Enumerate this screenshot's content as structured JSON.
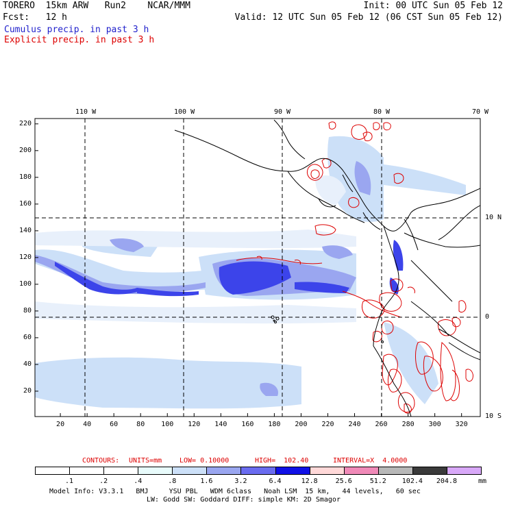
{
  "header": {
    "model": "TORERO  15km ARW   Run2    NCAR/MMM",
    "init": "Init: 00 UTC Sun 05 Feb 12",
    "fcst": "Fcst:   12 h",
    "valid": "Valid: 12 UTC Sun 05 Feb 12 (06 CST Sun 05 Feb 12)",
    "field1": "Cumulus precip. in past 3 h",
    "field2": "Explicit precip. in past 3 h"
  },
  "map": {
    "lon_labels": [
      "110 W",
      "100 W",
      "90 W",
      "80 W",
      "70 W"
    ],
    "lat_labels": [
      "10 N",
      "0",
      "10 S"
    ],
    "y_ticks": [
      "20",
      "40",
      "60",
      "80",
      "100",
      "120",
      "140",
      "160",
      "180",
      "200",
      "220"
    ],
    "x_ticks": [
      "20",
      "40",
      "60",
      "80",
      "100",
      "120",
      "140",
      "160",
      "180",
      "200",
      "220",
      "240",
      "260",
      "280",
      "300",
      "320"
    ]
  },
  "contour_info": {
    "label": "CONTOURS:",
    "units": "UNITS=mm",
    "low": "LOW= 0.10000",
    "high": "HIGH=  102.40",
    "interval": "INTERVAL=X  4.0000"
  },
  "colorbar": {
    "labels": [
      ".1",
      ".2",
      ".4",
      ".8",
      "1.6",
      "3.2",
      "6.4",
      "12.8",
      "25.6",
      "51.2",
      "102.4",
      "204.8"
    ],
    "unit": "mm",
    "colors": [
      "#ffffff",
      "#ffffff",
      "#ffffff",
      "#e8fbfb",
      "#cce0f8",
      "#9aa6f0",
      "#6a6cf0",
      "#1010e6",
      "#ffd8d8",
      "#f08ab8",
      "#b8b8b8",
      "#3a3a3a",
      "#d8a8f8"
    ]
  },
  "footer": {
    "line1": "Model Info: V3.3.1   BMJ     YSU PBL   WDM 6class   Noah LSM  15 km,   44 levels,   60 sec",
    "line2": "LW: Godd SW: Goddard DIFF: simple KM: 2D Smagor"
  }
}
